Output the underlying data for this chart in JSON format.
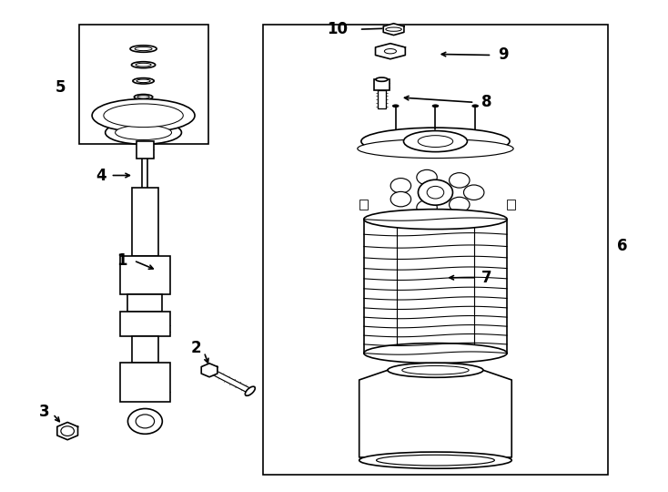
{
  "bg_color": "#ffffff",
  "line_color": "#000000",
  "line_width": 1.2,
  "fig_width": 7.34,
  "fig_height": 5.4,
  "dpi": 100
}
